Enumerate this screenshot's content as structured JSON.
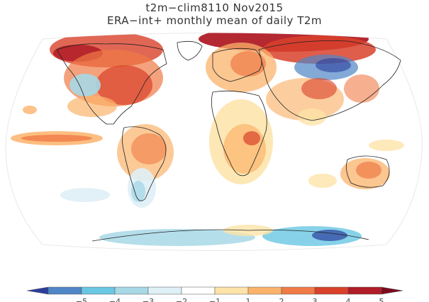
{
  "title_line1": "t2m−clim8110 Nov2015",
  "title_line2": "ERA−int+ monthly mean of daily T2m",
  "colorbar": {
    "ticks": [
      "−5",
      "−4",
      "−3",
      "−2",
      "−1",
      "1",
      "2",
      "3",
      "4",
      "5"
    ],
    "colors": [
      "#2b3e9c",
      "#4f86c6",
      "#69c7e3",
      "#a7d8e6",
      "#dff0f6",
      "#ffffff",
      "#fde3a8",
      "#fbb36b",
      "#f07b46",
      "#d9412b",
      "#b01c27",
      "#7a0a1e"
    ]
  }
}
